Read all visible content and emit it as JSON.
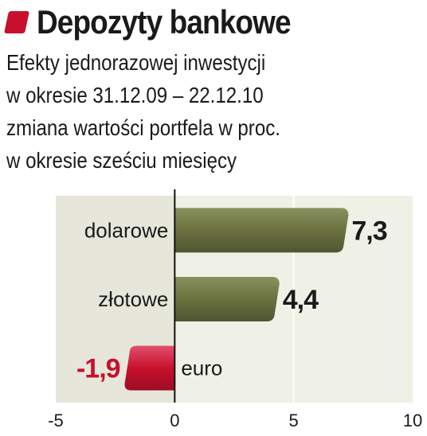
{
  "title": "Depozyty bankowe",
  "subtitle_lines": [
    "Efekty jednorazowej inwestycji",
    "w okresie 31.12.09 – 22.12.10",
    "zmiana wartości portfela w proc.",
    "w okresie sześciu miesięcy"
  ],
  "colors": {
    "accent": "#c8102e",
    "positive_bar": "#6b7240",
    "negative_bar": "#c8102e",
    "panel": "#e6e7da",
    "panel_light": "#f0f1e6"
  },
  "chart_data": {
    "type": "bar",
    "orientation": "horizontal",
    "title": "Depozyty bankowe",
    "categories": [
      "dolarowe",
      "złotowe",
      "euro"
    ],
    "values": [
      7.3,
      4.4,
      -1.9
    ],
    "value_labels": [
      "7,3",
      "4,4",
      "-1,9"
    ],
    "xlim": [
      -5,
      10
    ],
    "xticks": [
      "-5",
      "0",
      "5",
      "10"
    ],
    "xlabel": "",
    "ylabel": ""
  }
}
